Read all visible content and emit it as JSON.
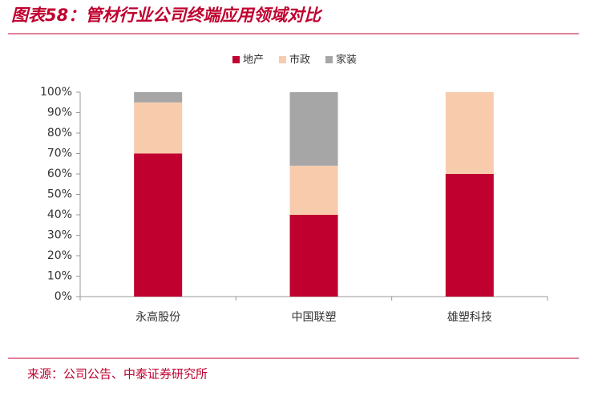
{
  "chart_data": {
    "type": "stacked-bar",
    "title": "图表58：管材行业公司终端应用领域对比",
    "source": "来源：公司公告、中泰证券研究所",
    "categories": [
      "永高股份",
      "中国联塑",
      "雄塑科技"
    ],
    "series": [
      {
        "name": "地产",
        "color": "#c0002f",
        "values": [
          70,
          40,
          60
        ]
      },
      {
        "name": "市政",
        "color": "#f8cbad",
        "values": [
          25,
          24,
          40
        ]
      },
      {
        "name": "家装",
        "color": "#a6a6a6",
        "values": [
          5,
          36,
          0
        ]
      }
    ],
    "ylim": [
      0,
      100
    ],
    "yticks": [
      {
        "value": 0,
        "label": "0%"
      },
      {
        "value": 10,
        "label": "10%"
      },
      {
        "value": 20,
        "label": "20%"
      },
      {
        "value": 30,
        "label": "30%"
      },
      {
        "value": 40,
        "label": "40%"
      },
      {
        "value": 50,
        "label": "50%"
      },
      {
        "value": 60,
        "label": "60%"
      },
      {
        "value": 70,
        "label": "70%"
      },
      {
        "value": 80,
        "label": "80%"
      },
      {
        "value": 90,
        "label": "90%"
      },
      {
        "value": 100,
        "label": "100%"
      }
    ],
    "legend": "top"
  }
}
